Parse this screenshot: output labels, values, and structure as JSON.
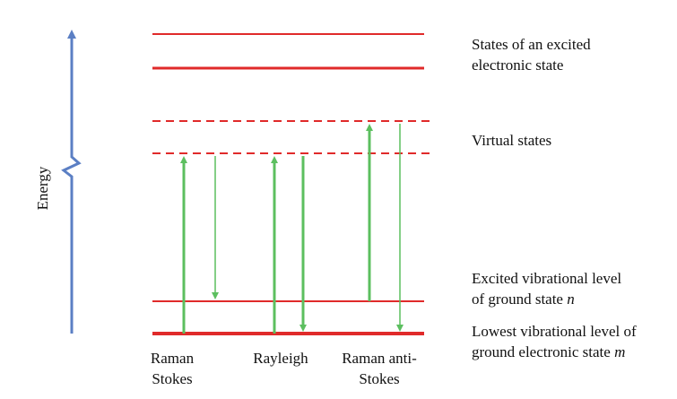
{
  "axis": {
    "label": "Energy"
  },
  "levels": {
    "excited_state_label": [
      "States of an excited",
      "electronic state"
    ],
    "virtual_states_label": "Virtual states",
    "excited_vibrational_label": [
      "Excited vibrational level",
      "of ground state "
    ],
    "excited_vibrational_var": "n",
    "lowest_vibrational_label": [
      "Lowest vibrational level of",
      "ground electronic state "
    ],
    "lowest_vibrational_var": "m"
  },
  "processes": [
    {
      "label": [
        "Raman",
        "Stokes"
      ]
    },
    {
      "label": [
        "Rayleigh"
      ]
    },
    {
      "label": [
        "Raman anti-",
        "Stokes"
      ]
    }
  ],
  "colors": {
    "level_line": "#e02a2a",
    "arrow": "#5cbf5f",
    "axis": "#5b7fc4"
  }
}
